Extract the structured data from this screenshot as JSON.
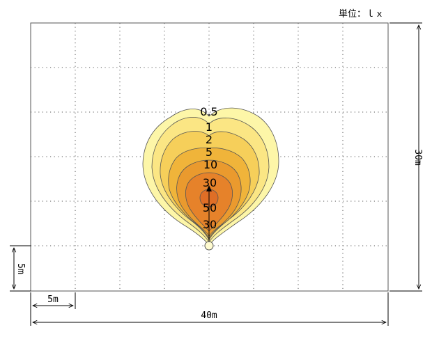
{
  "unit_label": "単位：ｌｘ",
  "dimensions": {
    "width_label": "40m",
    "height_label": "30m",
    "grid_x_label": "5m",
    "grid_y_label": "5m"
  },
  "contour_labels": [
    "0.5",
    "1",
    "2",
    "5",
    "10",
    "30",
    "50",
    "30"
  ],
  "colors": {
    "level_0_5": "#fdf6a8",
    "level_1": "#fbe684",
    "level_2": "#f6cf5a",
    "level_5": "#f0b43a",
    "level_10": "#ea9a2e",
    "level_30": "#e6822a",
    "level_50": "#df6e26",
    "grid": "#555555"
  }
}
